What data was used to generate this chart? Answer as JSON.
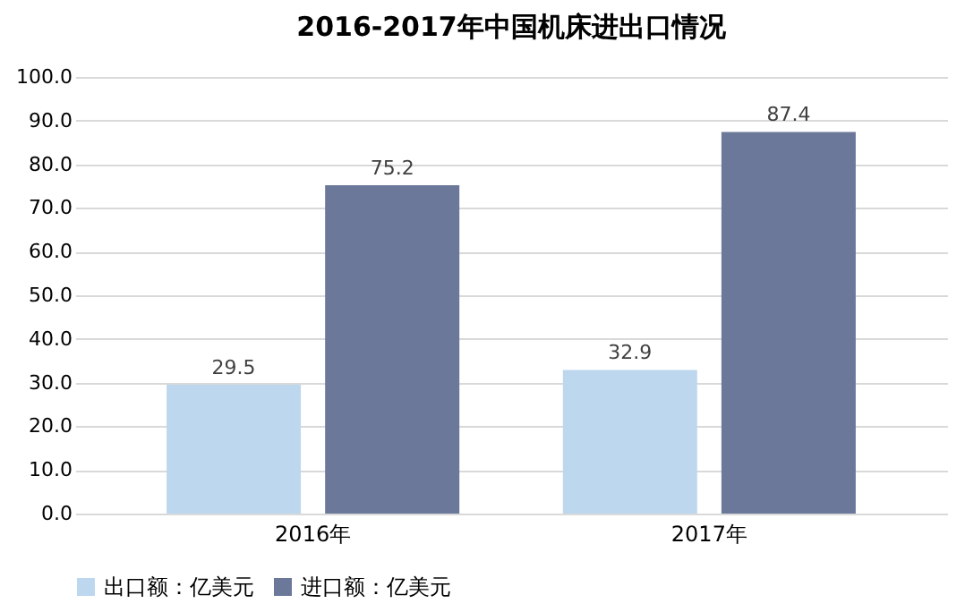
{
  "chart_data": {
    "type": "bar",
    "title": "2016-2017年中国机床进出口情况",
    "categories": [
      "2016年",
      "2017年"
    ],
    "series": [
      {
        "name": "出口额：亿美元",
        "color": "#bdd7ee",
        "values": [
          29.5,
          32.9
        ]
      },
      {
        "name": "进口额：亿美元",
        "color": "#6b7899",
        "values": [
          75.2,
          87.4
        ]
      }
    ],
    "ylim": [
      0,
      100
    ],
    "yticks": [
      {
        "value": 0,
        "label": "0.0"
      },
      {
        "value": 10,
        "label": "10.0"
      },
      {
        "value": 20,
        "label": "20.0"
      },
      {
        "value": 30,
        "label": "30.0"
      },
      {
        "value": 40,
        "label": "40.0"
      },
      {
        "value": 50,
        "label": "50.0"
      },
      {
        "value": 60,
        "label": "60.0"
      },
      {
        "value": 70,
        "label": "70.0"
      },
      {
        "value": 80,
        "label": "80.0"
      },
      {
        "value": 90,
        "label": "90.0"
      },
      {
        "value": 100,
        "label": "100.0"
      }
    ],
    "grid": "y",
    "legend": "bottom",
    "data_labels": true
  }
}
